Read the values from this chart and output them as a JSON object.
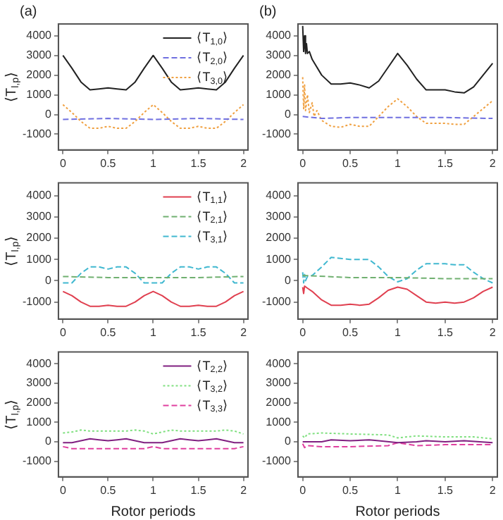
{
  "chart_data": [
    {
      "type": "line",
      "title": "(a)",
      "ylabel": "⟨T$_{l,p}$⟩",
      "xlim": [
        -0.05,
        2.05
      ],
      "xticks": [
        0,
        0.5,
        1,
        1.5,
        2
      ],
      "ylim": [
        -1800,
        4600
      ],
      "yticks": [
        -1000,
        0,
        1000,
        2000,
        3000,
        4000
      ],
      "grid": false,
      "legend": "top right",
      "marker": "none",
      "series": [
        {
          "name": "⟨T$_{1,0}$⟩",
          "color": "#222222",
          "line_style": "solid",
          "x": [
            0,
            0.1,
            0.2,
            0.3,
            0.4,
            0.5,
            0.6,
            0.7,
            0.8,
            0.9,
            1,
            1.1,
            1.2,
            1.3,
            1.4,
            1.5,
            1.6,
            1.7,
            1.8,
            1.9,
            2
          ],
          "values": [
            3000,
            2350,
            1650,
            1250,
            1300,
            1350,
            1300,
            1250,
            1650,
            2350,
            3000,
            2350,
            1650,
            1250,
            1300,
            1350,
            1300,
            1250,
            1650,
            2350,
            3000
          ]
        },
        {
          "name": "⟨T$_{2,0}$⟩",
          "color": "#7070e0",
          "line_style": "dashed",
          "x": [
            0,
            0.5,
            1,
            1.5,
            2
          ],
          "values": [
            -250,
            -200,
            -250,
            -200,
            -250
          ]
        },
        {
          "name": "⟨T$_{3,0}$⟩",
          "color": "#f0a040",
          "line_style": "dotted",
          "x": [
            0,
            0.1,
            0.2,
            0.3,
            0.4,
            0.5,
            0.6,
            0.7,
            0.8,
            0.9,
            1,
            1.1,
            1.2,
            1.3,
            1.4,
            1.5,
            1.6,
            1.7,
            1.8,
            1.9,
            2
          ],
          "values": [
            500,
            100,
            -350,
            -700,
            -700,
            -600,
            -700,
            -700,
            -350,
            100,
            500,
            100,
            -350,
            -700,
            -700,
            -600,
            -700,
            -700,
            -350,
            100,
            500
          ]
        }
      ]
    },
    {
      "type": "line",
      "title": "(b)",
      "xlim": [
        -0.05,
        2.05
      ],
      "xticks": [
        0,
        0.5,
        1,
        1.5,
        2
      ],
      "ylim": [
        -1800,
        4600
      ],
      "yticks": [
        -1000,
        0,
        1000,
        2000,
        3000,
        4000
      ],
      "grid": false,
      "marker": "none",
      "series": [
        {
          "color": "#222222",
          "line_style": "solid",
          "x": [
            0,
            0.01,
            0.02,
            0.03,
            0.04,
            0.05,
            0.07,
            0.1,
            0.2,
            0.3,
            0.4,
            0.5,
            0.6,
            0.7,
            0.8,
            0.9,
            1,
            1.1,
            1.2,
            1.3,
            1.4,
            1.5,
            1.6,
            1.7,
            1.8,
            1.9,
            2
          ],
          "values": [
            4500,
            3200,
            4000,
            3100,
            3600,
            3100,
            3200,
            2800,
            2000,
            1550,
            1550,
            1600,
            1500,
            1350,
            1700,
            2400,
            3100,
            2500,
            1800,
            1250,
            1250,
            1250,
            1150,
            1100,
            1400,
            2000,
            2600
          ]
        },
        {
          "color": "#7070e0",
          "line_style": "dashed",
          "x": [
            0,
            0.2,
            0.5,
            1,
            1.5,
            2
          ],
          "values": [
            -100,
            -200,
            -150,
            -150,
            -150,
            -200
          ]
        },
        {
          "color": "#f0a040",
          "line_style": "dotted",
          "x": [
            0,
            0.01,
            0.02,
            0.03,
            0.05,
            0.07,
            0.1,
            0.12,
            0.15,
            0.2,
            0.3,
            0.4,
            0.5,
            0.6,
            0.7,
            0.8,
            0.9,
            1,
            1.1,
            1.2,
            1.3,
            1.4,
            1.5,
            1.6,
            1.7,
            1.8,
            1.9,
            2
          ],
          "values": [
            1900,
            300,
            1500,
            200,
            1000,
            100,
            600,
            -100,
            200,
            -300,
            -600,
            -650,
            -500,
            -600,
            -600,
            -100,
            400,
            800,
            400,
            -100,
            -450,
            -450,
            -450,
            -500,
            -500,
            -100,
            300,
            700
          ]
        }
      ]
    },
    {
      "type": "line",
      "ylabel": "⟨T$_{l,p}$⟩",
      "xlim": [
        -0.05,
        2.05
      ],
      "xticks": [
        0,
        0.5,
        1,
        1.5,
        2
      ],
      "ylim": [
        -1800,
        4600
      ],
      "yticks": [
        -1000,
        0,
        1000,
        2000,
        3000,
        4000
      ],
      "grid": false,
      "legend": "top right",
      "marker": "none",
      "series": [
        {
          "name": "⟨T$_{1,1}$⟩",
          "color": "#e04050",
          "line_style": "solid",
          "x": [
            0,
            0.1,
            0.2,
            0.3,
            0.4,
            0.5,
            0.6,
            0.7,
            0.8,
            0.9,
            1,
            1.1,
            1.2,
            1.3,
            1.4,
            1.5,
            1.6,
            1.7,
            1.8,
            1.9,
            2
          ],
          "values": [
            -500,
            -700,
            -1000,
            -1200,
            -1200,
            -1150,
            -1200,
            -1200,
            -1000,
            -700,
            -500,
            -700,
            -1000,
            -1200,
            -1200,
            -1150,
            -1200,
            -1200,
            -1000,
            -700,
            -500
          ]
        },
        {
          "name": "⟨T$_{2,1}$⟩",
          "color": "#70b070",
          "line_style": "dashed",
          "x": [
            0,
            0.5,
            1,
            1.5,
            2
          ],
          "values": [
            200,
            150,
            150,
            150,
            200
          ]
        },
        {
          "name": "⟨T$_{3,1}$⟩",
          "color": "#40b8d0",
          "line_style": "dashed",
          "x": [
            0,
            0.1,
            0.2,
            0.3,
            0.4,
            0.5,
            0.6,
            0.7,
            0.8,
            0.9,
            1,
            1.1,
            1.2,
            1.3,
            1.4,
            1.5,
            1.6,
            1.7,
            1.8,
            1.9,
            2
          ],
          "values": [
            -100,
            -100,
            350,
            650,
            650,
            550,
            650,
            650,
            350,
            -100,
            -100,
            -100,
            350,
            650,
            650,
            550,
            650,
            650,
            350,
            -100,
            -100
          ]
        }
      ]
    },
    {
      "type": "line",
      "xlim": [
        -0.05,
        2.05
      ],
      "xticks": [
        0,
        0.5,
        1,
        1.5,
        2
      ],
      "ylim": [
        -1800,
        4600
      ],
      "yticks": [
        -1000,
        0,
        1000,
        2000,
        3000,
        4000
      ],
      "grid": false,
      "marker": "none",
      "series": [
        {
          "color": "#e04050",
          "line_style": "solid",
          "x": [
            0,
            0.01,
            0.02,
            0.05,
            0.1,
            0.2,
            0.3,
            0.4,
            0.5,
            0.6,
            0.7,
            0.8,
            0.9,
            1,
            1.1,
            1.2,
            1.3,
            1.4,
            1.5,
            1.6,
            1.7,
            1.8,
            1.9,
            2
          ],
          "values": [
            -300,
            -600,
            -250,
            -350,
            -500,
            -900,
            -1150,
            -1150,
            -1100,
            -1150,
            -1100,
            -800,
            -450,
            -300,
            -400,
            -700,
            -1000,
            -1050,
            -1000,
            -1050,
            -1000,
            -800,
            -500,
            -300
          ]
        },
        {
          "color": "#70b070",
          "line_style": "dashed",
          "x": [
            0,
            0.5,
            1,
            1.5,
            2
          ],
          "values": [
            250,
            150,
            150,
            100,
            100
          ]
        },
        {
          "color": "#40b8d0",
          "line_style": "dashed",
          "x": [
            0,
            0.01,
            0.02,
            0.03,
            0.05,
            0.1,
            0.2,
            0.3,
            0.4,
            0.5,
            0.6,
            0.7,
            0.8,
            0.9,
            1,
            1.1,
            1.2,
            1.3,
            1.4,
            1.5,
            1.6,
            1.7,
            1.8,
            1.9,
            2
          ],
          "values": [
            400,
            -100,
            300,
            0,
            200,
            250,
            650,
            1100,
            1050,
            1000,
            1000,
            1000,
            650,
            200,
            -50,
            100,
            500,
            800,
            800,
            800,
            750,
            750,
            400,
            100,
            -100
          ]
        }
      ]
    },
    {
      "type": "line",
      "ylabel": "⟨T$_{l,p}$⟩",
      "xlabel": "Rotor periods",
      "xlim": [
        -0.05,
        2.05
      ],
      "xticks": [
        0,
        0.5,
        1,
        1.5,
        2
      ],
      "ylim": [
        -1800,
        4600
      ],
      "yticks": [
        -1000,
        0,
        1000,
        2000,
        3000,
        4000
      ],
      "grid": false,
      "legend": "top right",
      "marker": "none",
      "series": [
        {
          "name": "⟨T$_{2,2}$⟩",
          "color": "#802080",
          "line_style": "solid",
          "x": [
            0,
            0.1,
            0.2,
            0.3,
            0.4,
            0.5,
            0.6,
            0.7,
            0.8,
            0.9,
            1,
            1.1,
            1.2,
            1.3,
            1.4,
            1.5,
            1.6,
            1.7,
            1.8,
            1.9,
            2
          ],
          "values": [
            -50,
            -50,
            50,
            150,
            100,
            50,
            100,
            150,
            50,
            -50,
            -50,
            -50,
            50,
            150,
            100,
            50,
            100,
            150,
            50,
            -50,
            -50
          ]
        },
        {
          "name": "⟨T$_{3,2}$⟩",
          "color": "#80e080",
          "line_style": "dotted",
          "x": [
            0,
            0.1,
            0.2,
            0.3,
            0.4,
            0.5,
            0.6,
            0.7,
            0.8,
            0.9,
            1,
            1.1,
            1.2,
            1.3,
            1.4,
            1.5,
            1.6,
            1.7,
            1.8,
            1.9,
            2
          ],
          "values": [
            450,
            500,
            600,
            550,
            550,
            550,
            550,
            550,
            600,
            550,
            400,
            500,
            600,
            550,
            550,
            550,
            550,
            550,
            600,
            550,
            400
          ]
        },
        {
          "name": "⟨T$_{3,3}$⟩",
          "color": "#e040a0",
          "line_style": "dashed",
          "x": [
            0,
            0.1,
            0.5,
            0.9,
            1,
            1.1,
            1.5,
            1.9,
            2
          ],
          "values": [
            -250,
            -350,
            -350,
            -350,
            -250,
            -350,
            -350,
            -350,
            -250
          ]
        }
      ]
    },
    {
      "type": "line",
      "xlabel": "Rotor periods",
      "xlim": [
        -0.05,
        2.05
      ],
      "xticks": [
        0,
        0.5,
        1,
        1.5,
        2
      ],
      "ylim": [
        -1800,
        4600
      ],
      "yticks": [
        -1000,
        0,
        1000,
        2000,
        3000,
        4000
      ],
      "grid": false,
      "marker": "none",
      "series": [
        {
          "color": "#802080",
          "line_style": "solid",
          "x": [
            0,
            0.2,
            0.3,
            0.5,
            0.7,
            0.8,
            1,
            1.2,
            1.3,
            1.5,
            1.7,
            2
          ],
          "values": [
            0,
            0,
            100,
            50,
            100,
            50,
            -50,
            0,
            50,
            0,
            50,
            -50
          ]
        },
        {
          "color": "#80e080",
          "line_style": "dotted",
          "x": [
            0,
            0.02,
            0.05,
            0.2,
            0.5,
            0.9,
            1,
            1.2,
            1.5,
            1.8,
            2
          ],
          "values": [
            300,
            200,
            400,
            450,
            400,
            350,
            200,
            300,
            250,
            250,
            150
          ]
        },
        {
          "color": "#e040a0",
          "line_style": "dashed",
          "x": [
            0,
            0.02,
            0.05,
            0.2,
            0.5,
            0.9,
            1,
            1.2,
            1.5,
            2
          ],
          "values": [
            -100,
            -300,
            -200,
            -250,
            -250,
            -200,
            -50,
            -200,
            -150,
            -150
          ]
        }
      ]
    }
  ]
}
